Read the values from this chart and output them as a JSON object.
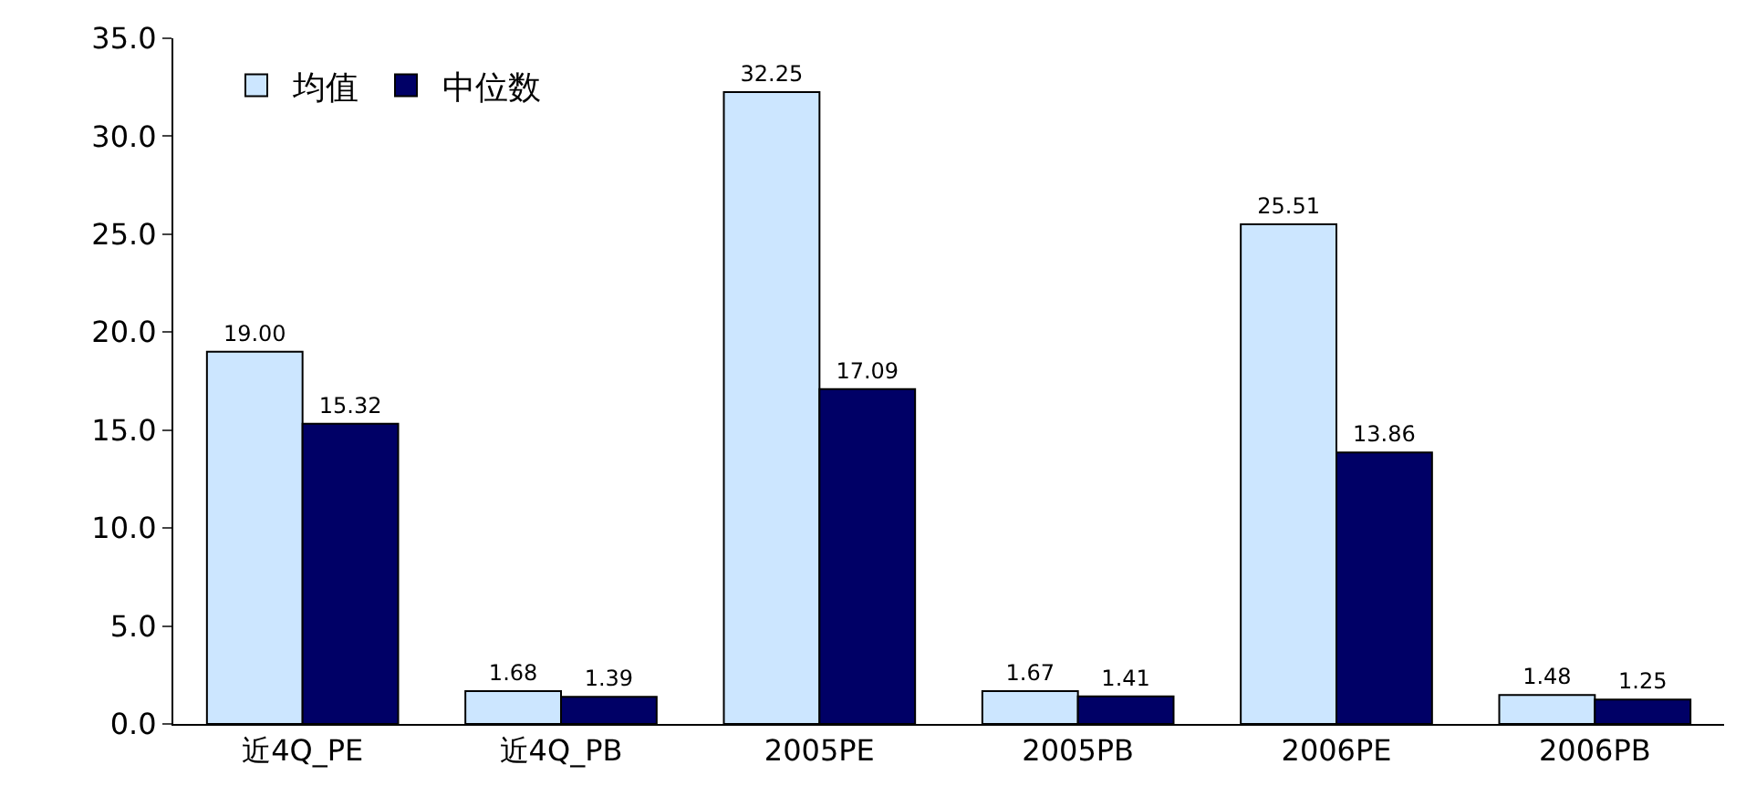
{
  "chart_data": {
    "type": "bar",
    "categories": [
      "近4Q_PE",
      "近4Q_PB",
      "2005PE",
      "2005PB",
      "2006PE",
      "2006PB"
    ],
    "series": [
      {
        "name": "均值",
        "color": "#cce6ff",
        "values": [
          19.0,
          1.68,
          32.25,
          1.67,
          25.51,
          1.48
        ],
        "value_labels": [
          "19.00",
          "1.68",
          "32.25",
          "1.67",
          "25.51",
          "1.48"
        ]
      },
      {
        "name": "中位数",
        "color": "#000066",
        "values": [
          15.32,
          1.39,
          17.09,
          1.41,
          13.86,
          1.25
        ],
        "value_labels": [
          "15.32",
          "1.39",
          "17.09",
          "1.41",
          "13.86",
          "1.25"
        ]
      }
    ],
    "ylim": [
      0,
      35
    ],
    "yticks": [
      {
        "value": 0,
        "label": "0.0"
      },
      {
        "value": 5,
        "label": "5.0"
      },
      {
        "value": 10,
        "label": "10.0"
      },
      {
        "value": 15,
        "label": "15.0"
      },
      {
        "value": 20,
        "label": "20.0"
      },
      {
        "value": 25,
        "label": "25.0"
      },
      {
        "value": 30,
        "label": "30.0"
      },
      {
        "value": 35,
        "label": "35.0"
      }
    ],
    "legend": "top left"
  }
}
